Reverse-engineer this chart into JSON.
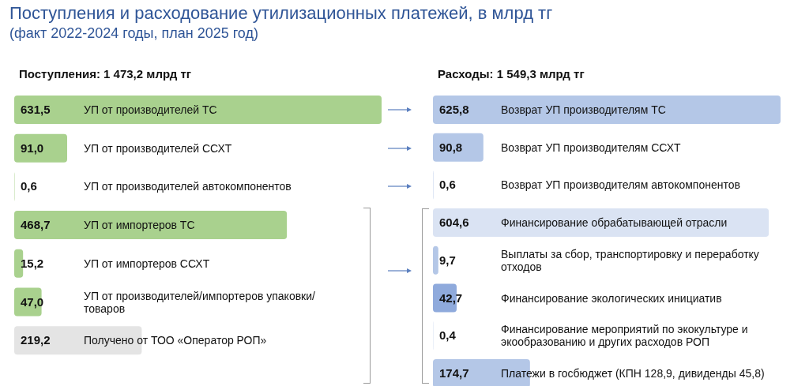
{
  "chart_data": [
    {
      "type": "other",
      "title": "Поступления и расходование утилизационных платежей, в млрд тг",
      "subtitle": "(факт 2022-2024 годы, план 2025 год)"
    },
    {
      "type": "bar",
      "orientation": "horizontal",
      "title": "Поступления: 1 473,2 млрд тг",
      "categories": [
        "УП от производителей ТС",
        "УП от производителей ССХТ",
        "УП от производителей автокомпонентов",
        "УП от импортеров ТС",
        "УП от импортеров ССХТ",
        "УП от производителей/импортеров упаковки/ товаров",
        "Получено от ТОО «Оператор РОП»"
      ],
      "values": [
        631.5,
        91.0,
        0.6,
        468.7,
        15.2,
        47.0,
        219.2
      ],
      "value_labels": [
        "631,5",
        "91,0",
        "0,6",
        "468,7",
        "15,2",
        "47,0",
        "219,2"
      ],
      "colors": [
        "#a9d18e",
        "#a9d18e",
        "#a9d18e",
        "#a9d18e",
        "#a9d18e",
        "#a9d18e",
        "#e4e4e4"
      ]
    },
    {
      "type": "bar",
      "orientation": "horizontal",
      "title": "Расходы: 1 549,3 млрд тг",
      "categories": [
        "Возврат УП производителям ТС",
        "Возврат УП производителям ССХТ",
        "Возврат УП производителям автокомпонентов",
        "Финансирование обрабатывающей отрасли",
        "Выплаты за сбор, транспортировку и переработку отходов",
        "Финансирование экологических инициатив",
        "Финансирование мероприятий по экокультуре и экообразованию и других расходов РОП",
        "Платежи в госбюджет (КПН 128,9, дивиденды 45,8)"
      ],
      "values": [
        625.8,
        90.8,
        0.6,
        604.6,
        9.7,
        42.7,
        0.4,
        174.7
      ],
      "value_labels": [
        "625,8",
        "90,8",
        "0,6",
        "604,6",
        "9,7",
        "42,7",
        "0,4",
        "174,7"
      ],
      "colors": [
        "#b4c7e7",
        "#b4c7e7",
        "#b4c7e7",
        "#dae3f3",
        "#b4c7e7",
        "#8faadc",
        "#b4c7e7",
        "#b4c7e7"
      ]
    }
  ]
}
